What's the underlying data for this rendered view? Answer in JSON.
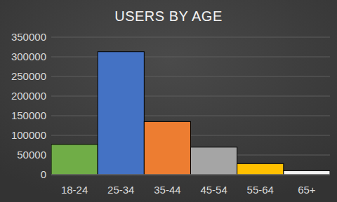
{
  "chart_data": {
    "type": "bar",
    "title": "USERS BY AGE",
    "categories": [
      "18-24",
      "25-34",
      "35-44",
      "45-54",
      "55-64",
      "65+"
    ],
    "values": [
      77000,
      313000,
      135000,
      70000,
      28000,
      10000
    ],
    "colors": [
      "#70ad47",
      "#4472c4",
      "#ed7d31",
      "#a5a5a5",
      "#ffc000",
      "#f2f2f2"
    ],
    "ylim": [
      0,
      350000
    ],
    "yticks": [
      0,
      50000,
      100000,
      150000,
      200000,
      250000,
      300000,
      350000
    ],
    "grid": true
  }
}
